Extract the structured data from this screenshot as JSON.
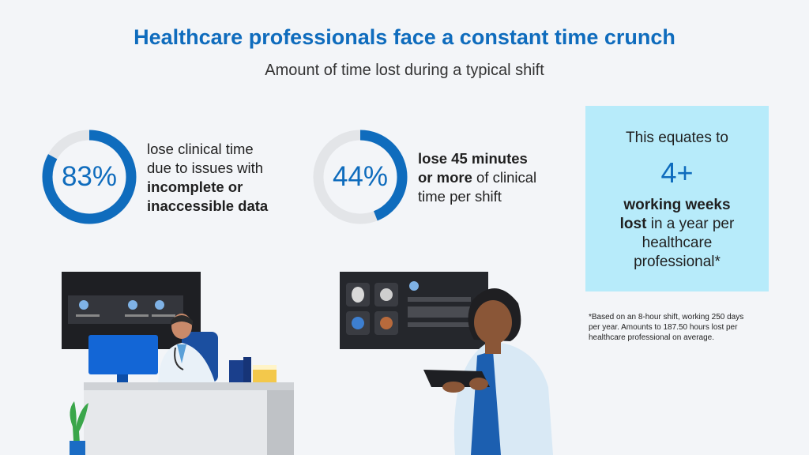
{
  "header": {
    "title": "Healthcare professionals face a constant time crunch",
    "subtitle": "Amount of time lost during a typical shift"
  },
  "stats": [
    {
      "percent_label": "83%",
      "percent_value": 83,
      "text_1": "lose clinical time",
      "text_2": "due to issues with",
      "bold_1": "incomplete or",
      "bold_2": "inaccessible data"
    },
    {
      "percent_label": "44%",
      "percent_value": 44,
      "bold_1": "lose 45 minutes",
      "bold_2": "or more",
      "text_2": " of clinical",
      "text_3": "time per shift"
    }
  ],
  "callout": {
    "lead": "This equates to",
    "big": "4+",
    "bold_1": "working weeks",
    "bold_2": "lost",
    "text_2": " in a year per",
    "text_3": "healthcare",
    "text_4": "professional*"
  },
  "footnote": {
    "line_1": "*Based on an 8-hour shift, working 250 days",
    "line_2": "per year. Amounts to 187.50 hours lost per",
    "line_3": "healthcare professional on average."
  },
  "colors": {
    "accent": "#0f6cbd",
    "ring_track": "#e3e5e8",
    "callout_bg": "#b7ebfa",
    "background": "#f3f5f8"
  },
  "illustrations": {
    "left": "doctor-at-desk-illustration",
    "right": "doctor-with-tablet-illustration"
  }
}
